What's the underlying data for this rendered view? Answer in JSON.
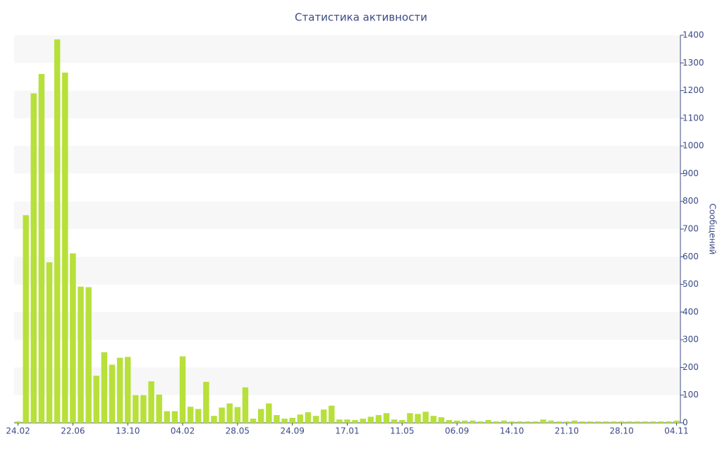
{
  "chart_data": {
    "type": "bar",
    "title": "Статистика активности",
    "y_label": "Сообщений",
    "categories": [
      "24.02",
      null,
      null,
      null,
      null,
      null,
      null,
      "22.06",
      null,
      null,
      null,
      null,
      null,
      null,
      "13.10",
      null,
      null,
      null,
      null,
      null,
      null,
      "04.02",
      null,
      null,
      null,
      null,
      null,
      null,
      "28.05",
      null,
      null,
      null,
      null,
      null,
      null,
      "24.09",
      null,
      null,
      null,
      null,
      null,
      null,
      "17.01",
      null,
      null,
      null,
      null,
      null,
      null,
      "11.05",
      null,
      null,
      null,
      null,
      null,
      null,
      "06.09",
      null,
      null,
      null,
      null,
      null,
      null,
      "14.10",
      null,
      null,
      null,
      null,
      null,
      null,
      "21.10",
      null,
      null,
      null,
      null,
      null,
      null,
      "28.10",
      null,
      null,
      null,
      null,
      null,
      null,
      "04.11"
    ],
    "values": [
      5,
      750,
      1190,
      1260,
      580,
      1385,
      1265,
      612,
      492,
      490,
      170,
      255,
      210,
      235,
      238,
      100,
      100,
      150,
      102,
      42,
      42,
      240,
      58,
      50,
      148,
      25,
      55,
      70,
      57,
      128,
      15,
      50,
      70,
      28,
      15,
      18,
      30,
      38,
      25,
      48,
      62,
      12,
      12,
      10,
      15,
      22,
      28,
      35,
      12,
      10,
      35,
      32,
      40,
      25,
      20,
      10,
      8,
      8,
      8,
      5,
      10,
      5,
      8,
      5,
      5,
      5,
      5,
      12,
      8,
      5,
      5,
      8,
      5,
      5,
      5,
      5,
      5,
      5,
      5,
      5,
      5,
      5,
      5,
      5,
      8
    ],
    "color": "#b7e03a",
    "ylim": [
      0,
      1400
    ],
    "yticks": [
      0,
      100,
      200,
      300,
      400,
      500,
      600,
      700,
      800,
      900,
      1000,
      1100,
      1200,
      1300,
      1400
    ],
    "grid": true,
    "band_color": "#f7f7f7",
    "axis_side": "right"
  }
}
